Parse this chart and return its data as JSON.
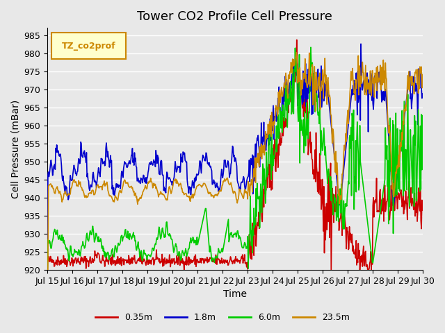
{
  "title": "Tower CO2 Profile Cell Pressure",
  "xlabel": "Time",
  "ylabel": "Cell Pressure (mBar)",
  "ylim": [
    920,
    987
  ],
  "yticks": [
    920,
    925,
    930,
    935,
    940,
    945,
    950,
    955,
    960,
    965,
    970,
    975,
    980,
    985
  ],
  "xticklabels": [
    "Jul 15",
    "Jul 16",
    "Jul 17",
    "Jul 18",
    "Jul 19",
    "Jul 20",
    "Jul 21",
    "Jul 22",
    "Jul 23",
    "Jul 24",
    "Jul 25",
    "Jul 26",
    "Jul 27",
    "Jul 28",
    "Jul 29",
    "Jul 30"
  ],
  "series_colors": [
    "#cc0000",
    "#0000cc",
    "#00cc00",
    "#cc8800"
  ],
  "series_labels": [
    "0.35m",
    "1.8m",
    "6.0m",
    "23.5m"
  ],
  "legend_label": "TZ_co2prof",
  "legend_label_color": "#cc8800",
  "legend_box_facecolor": "#ffffcc",
  "legend_box_edgecolor": "#cc8800",
  "bg_color": "#e8e8e8",
  "plot_bg_color": "#e8e8e8",
  "grid_color": "#ffffff",
  "title_fontsize": 13,
  "axis_label_fontsize": 10,
  "tick_fontsize": 9,
  "line_width": 1.2,
  "n_days": 15,
  "points_per_day": 48
}
